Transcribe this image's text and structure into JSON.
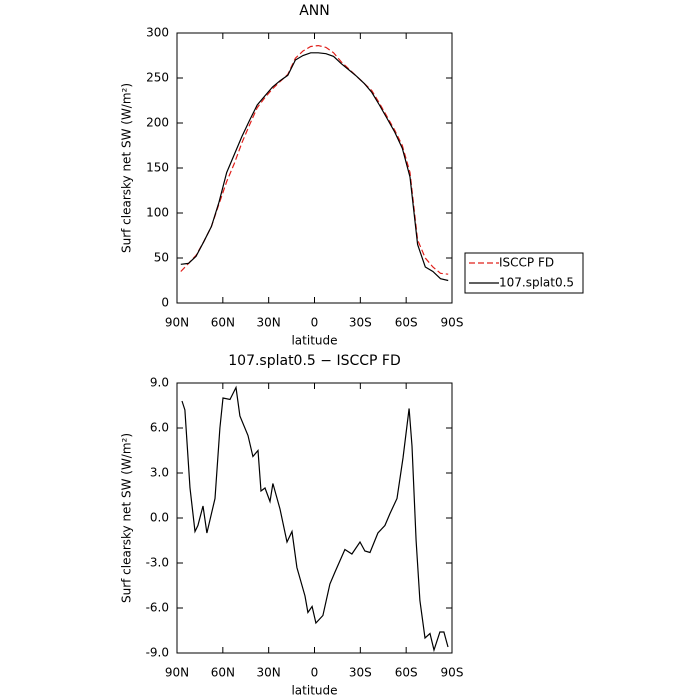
{
  "chart_data": [
    {
      "type": "line",
      "title": "ANN",
      "x_label": "latitude",
      "y_label": "Surf clearsky net SW (W/m²)",
      "x": [
        87.5,
        82.5,
        77.5,
        72.5,
        67.5,
        62.5,
        57.5,
        52.5,
        47.5,
        42.5,
        37.5,
        32.5,
        27.5,
        22.5,
        17.5,
        12.5,
        7.5,
        2.5,
        -2.5,
        -7.5,
        -12.5,
        -17.5,
        -22.5,
        -27.5,
        -32.5,
        -37.5,
        -42.5,
        -47.5,
        -52.5,
        -57.5,
        -62.5,
        -67.5,
        -72.5,
        -77.5,
        -82.5,
        -87.5
      ],
      "series": [
        {
          "name": "ISCCP FD",
          "color": "#e0201b",
          "dashed": true,
          "values": [
            35,
            44,
            53,
            68,
            85,
            110,
            135,
            155,
            178,
            198,
            217,
            228,
            238,
            246,
            254,
            272,
            280,
            285,
            286,
            284,
            278,
            268,
            260,
            252,
            244,
            236,
            222,
            207,
            192,
            175,
            145,
            70,
            50,
            40,
            33,
            32
          ]
        },
        {
          "name": "107.splat0.5",
          "color": "#000000",
          "dashed": false,
          "values": [
            43,
            44,
            52,
            68,
            85,
            112,
            145,
            165,
            185,
            203,
            220,
            230,
            240,
            247,
            253,
            270,
            275,
            278,
            278,
            277,
            274,
            266,
            259,
            252,
            244,
            234,
            220,
            205,
            190,
            172,
            140,
            65,
            40,
            35,
            27,
            25
          ]
        }
      ],
      "xlim": [
        90,
        -90
      ],
      "xticks": [
        {
          "value": 90,
          "label": "90N"
        },
        {
          "value": 60,
          "label": "60N"
        },
        {
          "value": 30,
          "label": "30N"
        },
        0,
        {
          "value": -30,
          "label": "30S"
        },
        {
          "value": -60,
          "label": "60S"
        },
        {
          "value": -90,
          "label": "90S"
        }
      ],
      "ylim": [
        0,
        300
      ],
      "yticks": [
        0,
        50,
        100,
        150,
        200,
        250,
        300
      ],
      "legend": "right"
    },
    {
      "type": "line",
      "title": "107.splat0.5 − ISCCP FD",
      "x_label": "latitude",
      "y_label": "Surf clearsky net SW (W/m²)",
      "x": [
        86.7,
        84.8,
        81.5,
        78.2,
        76.3,
        73.0,
        70.4,
        65.1,
        61.9,
        59.9,
        55.3,
        51.4,
        48.8,
        43.5,
        40.3,
        37.0,
        35.0,
        32.4,
        29.1,
        27.2,
        22.6,
        18.0,
        14.7,
        11.5,
        6.2,
        4.3,
        1.6,
        -0.9,
        -5.5,
        -10.1,
        -13.4,
        -19.9,
        -24.5,
        -29.8,
        -33.0,
        -36.3,
        -41.5,
        -46.1,
        -49.4,
        -54.0,
        -57.9,
        -61.9,
        -63.8,
        -66.5,
        -69.0,
        -72.3,
        -75.6,
        -78.2,
        -82.1,
        -84.7,
        -87.4
      ],
      "series": [
        {
          "color": "#000000",
          "dashed": false,
          "values": [
            7.8,
            7.2,
            2.0,
            -0.9,
            -0.5,
            0.8,
            -1.0,
            1.3,
            6.0,
            8.0,
            7.9,
            8.7,
            6.8,
            5.5,
            4.1,
            4.5,
            1.8,
            2.0,
            1.1,
            2.3,
            0.6,
            -1.6,
            -0.9,
            -3.3,
            -5.2,
            -6.3,
            -5.9,
            -7.0,
            -6.5,
            -4.4,
            -3.6,
            -2.1,
            -2.4,
            -1.6,
            -2.2,
            -2.3,
            -1.0,
            -0.5,
            0.3,
            1.3,
            4.0,
            7.3,
            4.8,
            -1.5,
            -5.5,
            -8.0,
            -7.7,
            -8.8,
            -7.6,
            -7.6,
            -8.6
          ]
        }
      ],
      "xlim": [
        90,
        -90
      ],
      "xticks": [
        {
          "value": 90,
          "label": "90N"
        },
        {
          "value": 60,
          "label": "60N"
        },
        {
          "value": 30,
          "label": "30N"
        },
        0,
        {
          "value": -30,
          "label": "30S"
        },
        {
          "value": -60,
          "label": "60S"
        },
        {
          "value": -90,
          "label": "90S"
        }
      ],
      "ylim": [
        -9,
        9
      ],
      "yticks": [
        {
          "value": -9,
          "label": "-9.0"
        },
        {
          "value": -6,
          "label": "-6.0"
        },
        {
          "value": -3,
          "label": "-3.0"
        },
        {
          "value": 0,
          "label": "0.0"
        },
        {
          "value": 3,
          "label": "3.0"
        },
        {
          "value": 6,
          "label": "6.0"
        },
        {
          "value": 9,
          "label": "9.0"
        }
      ]
    }
  ]
}
